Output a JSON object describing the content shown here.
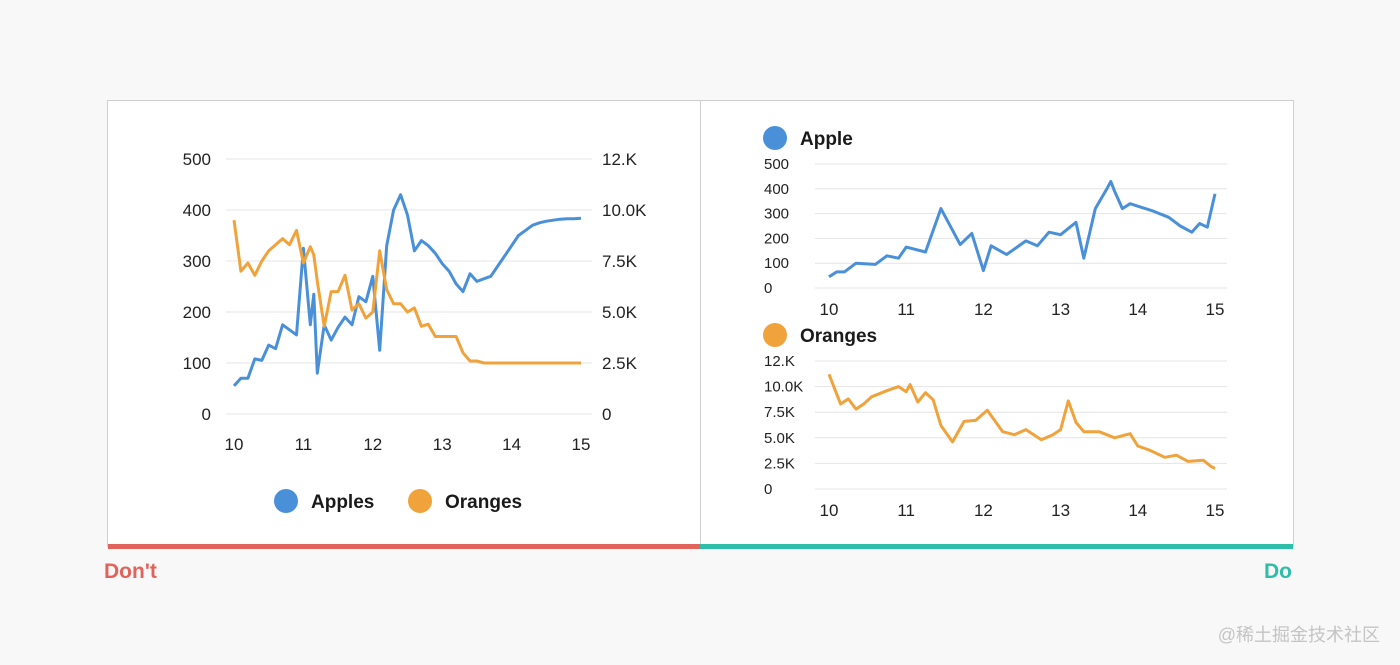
{
  "colors": {
    "apples": "#4a90d9",
    "oranges": "#f0a23b",
    "dont": "#e0645c",
    "do": "#2dbda8"
  },
  "labels": {
    "dont": "Don't",
    "do": "Do",
    "watermark": "@稀土掘金技术社区"
  },
  "chart_data": [
    {
      "type": "line",
      "name": "dual-axis",
      "x": [
        10.0,
        10.1,
        10.2,
        10.3,
        10.4,
        10.5,
        10.6,
        10.7,
        10.8,
        10.9,
        11.0,
        11.1,
        11.15,
        11.2,
        11.3,
        11.4,
        11.5,
        11.6,
        11.7,
        11.8,
        11.9,
        12.0,
        12.1,
        12.2,
        12.3,
        12.4,
        12.5,
        12.6,
        12.7,
        12.8,
        12.9,
        13.0,
        13.1,
        13.2,
        13.3,
        13.4,
        13.5,
        13.6,
        13.7,
        13.8,
        13.9,
        14.0,
        14.1,
        14.2,
        14.3,
        14.4,
        14.5,
        14.6,
        14.7,
        14.8,
        14.9,
        15.0
      ],
      "x_ticks": [
        "10",
        "11",
        "12",
        "13",
        "14",
        "15"
      ],
      "y_left_ticks": [
        "0",
        "100",
        "200",
        "300",
        "400",
        "500"
      ],
      "y_right_ticks": [
        "0",
        "2.5K",
        "5.0K",
        "7.5K",
        "10.0K",
        "12.K"
      ],
      "y_left_range": [
        0,
        500
      ],
      "y_right_range": [
        0,
        12500
      ],
      "series": [
        {
          "name": "Apples",
          "axis": "left",
          "values": [
            55,
            70,
            70,
            108,
            105,
            135,
            128,
            175,
            165,
            155,
            325,
            175,
            235,
            80,
            175,
            145,
            170,
            190,
            175,
            230,
            220,
            270,
            125,
            330,
            400,
            430,
            390,
            320,
            340,
            330,
            315,
            295,
            280,
            255,
            240,
            275,
            260,
            265,
            270,
            290,
            310,
            330,
            350,
            360,
            370,
            375,
            378,
            380,
            382,
            383,
            383,
            384
          ]
        },
        {
          "name": "Oranges",
          "axis": "right",
          "values": [
            9500,
            7000,
            7400,
            6800,
            7500,
            8000,
            8300,
            8600,
            8300,
            9000,
            7400,
            8200,
            7800,
            6500,
            4300,
            6000,
            6000,
            6800,
            5100,
            5400,
            4700,
            5000,
            8000,
            6100,
            5400,
            5400,
            5000,
            5200,
            4300,
            4400,
            3800,
            3800,
            3800,
            3800,
            3000,
            2600,
            2600,
            2500,
            2500,
            2500,
            2500,
            2500,
            2500,
            2500,
            2500,
            2500,
            2500,
            2500,
            2500,
            2500,
            2500,
            2500
          ]
        }
      ],
      "legend": [
        "Apples",
        "Oranges"
      ],
      "legend_position": "bottom",
      "grid": true
    },
    {
      "type": "line",
      "name": "small-multiple-apple",
      "title": "Apple",
      "x_ticks": [
        "10",
        "11",
        "12",
        "13",
        "14",
        "15"
      ],
      "y_ticks": [
        "0",
        "100",
        "200",
        "300",
        "400",
        "500"
      ],
      "y_range": [
        0,
        500
      ],
      "x": [
        10.0,
        10.1,
        10.2,
        10.35,
        10.6,
        10.75,
        10.9,
        11.0,
        11.25,
        11.45,
        11.7,
        11.85,
        12.0,
        12.1,
        12.3,
        12.55,
        12.7,
        12.85,
        13.0,
        13.2,
        13.3,
        13.45,
        13.6,
        13.65,
        13.7,
        13.8,
        13.9,
        14.0,
        14.2,
        14.4,
        14.55,
        14.7,
        14.8,
        14.9,
        15.0
      ],
      "values": [
        45,
        65,
        65,
        100,
        95,
        130,
        120,
        165,
        145,
        320,
        175,
        220,
        70,
        170,
        135,
        190,
        170,
        225,
        215,
        265,
        120,
        320,
        400,
        430,
        390,
        320,
        340,
        330,
        310,
        285,
        250,
        225,
        260,
        245,
        380
      ],
      "grid": true
    },
    {
      "type": "line",
      "name": "small-multiple-oranges",
      "title": "Oranges",
      "x_ticks": [
        "10",
        "11",
        "12",
        "13",
        "14",
        "15"
      ],
      "y_ticks": [
        "0",
        "2.5K",
        "5.0K",
        "7.5K",
        "10.0K",
        "12.K"
      ],
      "y_range": [
        0,
        12500
      ],
      "x": [
        10.0,
        10.15,
        10.25,
        10.35,
        10.45,
        10.55,
        10.75,
        10.9,
        11.0,
        11.05,
        11.15,
        11.25,
        11.35,
        11.45,
        11.6,
        11.75,
        11.9,
        12.05,
        12.25,
        12.4,
        12.55,
        12.75,
        12.9,
        13.0,
        13.1,
        13.2,
        13.3,
        13.5,
        13.7,
        13.9,
        14.0,
        14.15,
        14.35,
        14.5,
        14.65,
        14.85,
        14.95,
        15.0
      ],
      "values": [
        11200,
        8300,
        8800,
        7800,
        8300,
        9000,
        9600,
        10000,
        9500,
        10200,
        8500,
        9400,
        8700,
        6200,
        4600,
        6600,
        6700,
        7700,
        5600,
        5300,
        5800,
        4800,
        5300,
        5800,
        8600,
        6500,
        5600,
        5600,
        5000,
        5400,
        4200,
        3800,
        3100,
        3300,
        2700,
        2800,
        2200,
        2000
      ],
      "grid": true
    }
  ]
}
